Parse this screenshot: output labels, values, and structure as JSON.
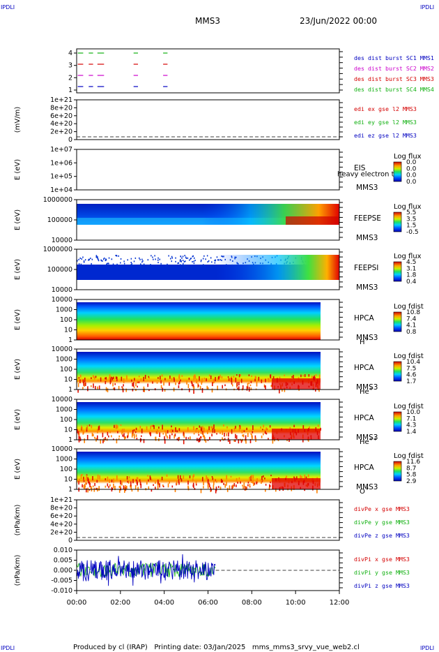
{
  "header": {
    "corner_tl": "IPDLI",
    "corner_tr": "IPDLI",
    "corner_bl": "IPDLI",
    "corner_br": "IPDLI",
    "title": "MMS3",
    "date": "23/Jun/2022 00:00"
  },
  "footer": {
    "credit": "Produced by cl (IRAP)   Printing date: 03/Jan/2025   mms_mms3_srvy_vue_web2.cl"
  },
  "colors": {
    "red": "#d40000",
    "green": "#10b010",
    "blue": "#0000c0",
    "magenta": "#cc00cc"
  },
  "chart_data": {
    "type": "multi-panel time series",
    "x_ticks": [
      "00:00",
      "02:00",
      "04:00",
      "06:00",
      "08:00",
      "10:00",
      "12:00"
    ],
    "x_range_hours": [
      0,
      12
    ],
    "panels": [
      {
        "id": "burst",
        "type": "line",
        "yticks": [
          "4",
          "3",
          "2",
          "1"
        ],
        "legend": [
          {
            "label": "des dist burst SC1 MMS1",
            "color": "#0000c0"
          },
          {
            "label": "des dist burst SC2 MMS2",
            "color": "#cc00cc"
          },
          {
            "label": "des dist burst SC3 MMS3",
            "color": "#d40000"
          },
          {
            "label": "des dist burst SC4 MMS4",
            "color": "#10b010"
          }
        ],
        "segments_hours": [
          [
            0.05,
            0.3
          ],
          [
            0.55,
            0.75
          ],
          [
            0.95,
            1.25
          ],
          [
            2.6,
            2.8
          ],
          [
            3.95,
            4.15
          ]
        ]
      },
      {
        "id": "edi",
        "type": "line",
        "ylabel": "(mV/m)",
        "yticks": [
          "1e+21",
          "8e+20",
          "6e+20",
          "4e+20",
          "2e+20",
          "0"
        ],
        "legend": [
          {
            "label": "edi ex gse l2 MMS3",
            "color": "#d40000"
          },
          {
            "label": "edi ey gse l2 MMS3",
            "color": "#10b010"
          },
          {
            "label": "edi ez gse l2 MMS3",
            "color": "#0000c0"
          }
        ]
      },
      {
        "id": "eis",
        "type": "heatmap",
        "ylabel": "E (eV)",
        "yticks": [
          "1e+07",
          "1e+06",
          "1e+05",
          "1e+04"
        ],
        "instrument": "EIS",
        "sub": "heavy electron to",
        "sc": "MMS3",
        "cb_title": "Log flux",
        "cb_ticks": [
          "0.0",
          "0.0",
          "0.0",
          "0.0"
        ]
      },
      {
        "id": "feepse",
        "type": "heatmap",
        "ylabel": "E (eV)",
        "yticks": [
          "1000000",
          "100000",
          "10000"
        ],
        "instrument": "FEEPSE",
        "sc": "MMS3",
        "cb_title": "Log flux",
        "cb_ticks": [
          "5.5",
          "3.5",
          "1.5",
          "-0.5"
        ]
      },
      {
        "id": "feepsi",
        "type": "heatmap",
        "ylabel": "E (eV)",
        "yticks": [
          "1000000",
          "100000",
          "10000"
        ],
        "instrument": "FEEPSI",
        "sc": "MMS3",
        "cb_title": "Log flux",
        "cb_ticks": [
          "4.5",
          "3.1",
          "1.8",
          "0.4"
        ]
      },
      {
        "id": "hpca_h",
        "type": "heatmap",
        "ylabel": "E (eV)",
        "yticks": [
          "10000",
          "1000",
          "100",
          "10",
          "1"
        ],
        "instrument": "HPCA",
        "sc": "MMS3",
        "species": "H",
        "species_sup": "+",
        "cb_title": "Log fdist",
        "cb_ticks": [
          "10.8",
          "7.4",
          "4.1",
          "0.8"
        ]
      },
      {
        "id": "hpca_he",
        "type": "heatmap",
        "ylabel": "E (eV)",
        "yticks": [
          "10000",
          "1000",
          "100",
          "10",
          "1"
        ],
        "instrument": "HPCA",
        "sc": "MMS3",
        "species": "He",
        "species_sup": "+",
        "cb_title": "Log fdist",
        "cb_ticks": [
          "10.4",
          "7.5",
          "4.6",
          "1.7"
        ]
      },
      {
        "id": "hpca_hepp",
        "type": "heatmap",
        "ylabel": "E (eV)",
        "yticks": [
          "10000",
          "1000",
          "100",
          "10",
          "1"
        ],
        "instrument": "HPCA",
        "sc": "MMS3",
        "species": "He",
        "species_sup": "++",
        "cb_title": "Log fdist",
        "cb_ticks": [
          "10.0",
          "7.1",
          "4.3",
          "1.4"
        ]
      },
      {
        "id": "hpca_o",
        "type": "heatmap",
        "ylabel": "E (eV)",
        "yticks": [
          "10000",
          "1000",
          "100",
          "10",
          "1"
        ],
        "instrument": "HPCA",
        "sc": "MMS3",
        "species": "O",
        "species_sup": "+",
        "cb_title": "Log fdist",
        "cb_ticks": [
          "11.6",
          "8.7",
          "5.8",
          "2.9"
        ]
      },
      {
        "id": "divpe",
        "type": "line",
        "ylabel": "(nPa/km)",
        "yticks": [
          "1e+21",
          "8e+20",
          "6e+20",
          "4e+20",
          "2e+20",
          "0"
        ],
        "legend": [
          {
            "label": "divPe x gse MMS3",
            "color": "#d40000"
          },
          {
            "label": "divPe y gse MMS3",
            "color": "#10b010"
          },
          {
            "label": "divPe z gse MMS3",
            "color": "#0000c0"
          }
        ]
      },
      {
        "id": "divpi",
        "type": "line",
        "ylabel": "(nPa/km)",
        "yticks": [
          "0.010",
          "0.005",
          "0.000",
          "-0.005",
          "-0.010"
        ],
        "ylim": [
          -0.01,
          0.01
        ],
        "data_end_hours": 6.35,
        "legend": [
          {
            "label": "divPi x gse MMS3",
            "color": "#d40000"
          },
          {
            "label": "divPi y gse MMS3",
            "color": "#10b010"
          },
          {
            "label": "divPi z gse MMS3",
            "color": "#0000c0"
          }
        ]
      }
    ]
  }
}
